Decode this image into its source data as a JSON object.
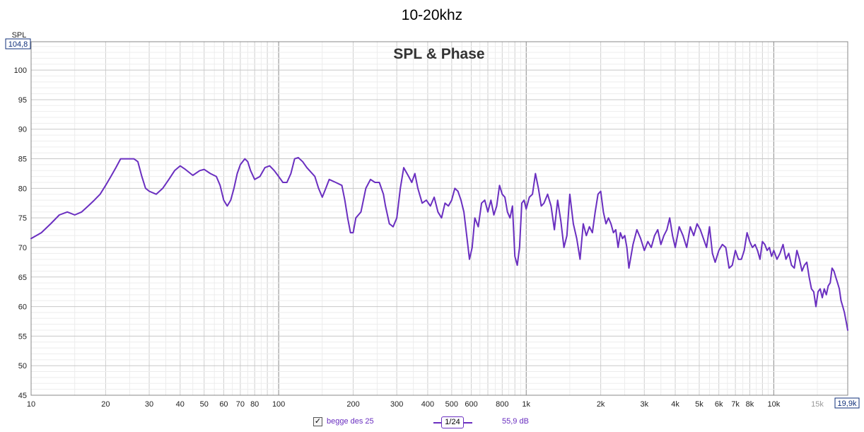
{
  "window": {
    "title": "10-20khz"
  },
  "chart_data": {
    "type": "line",
    "title": "SPL & Phase",
    "ylabel": "SPL",
    "xscale": "log",
    "xlim": [
      10,
      19900
    ],
    "ylim": [
      45,
      104.8
    ],
    "y_max_readout": "104,8",
    "x_max_readout": "19,9k",
    "y_ticks": [
      45,
      50,
      55,
      60,
      65,
      70,
      75,
      80,
      85,
      90,
      95,
      100
    ],
    "x_tick_labels": [
      {
        "v": 10,
        "t": "10"
      },
      {
        "v": 20,
        "t": "20"
      },
      {
        "v": 30,
        "t": "30"
      },
      {
        "v": 40,
        "t": "40"
      },
      {
        "v": 50,
        "t": "50"
      },
      {
        "v": 60,
        "t": "60"
      },
      {
        "v": 70,
        "t": "70"
      },
      {
        "v": 80,
        "t": "80"
      },
      {
        "v": 100,
        "t": "100"
      },
      {
        "v": 200,
        "t": "200"
      },
      {
        "v": 300,
        "t": "300"
      },
      {
        "v": 400,
        "t": "400"
      },
      {
        "v": 500,
        "t": "500"
      },
      {
        "v": 600,
        "t": "600"
      },
      {
        "v": 800,
        "t": "800"
      },
      {
        "v": 1000,
        "t": "1k"
      },
      {
        "v": 2000,
        "t": "2k"
      },
      {
        "v": 3000,
        "t": "3k"
      },
      {
        "v": 4000,
        "t": "4k"
      },
      {
        "v": 5000,
        "t": "5k"
      },
      {
        "v": 6000,
        "t": "6k"
      },
      {
        "v": 7000,
        "t": "7k"
      },
      {
        "v": 8000,
        "t": "8k"
      },
      {
        "v": 10000,
        "t": "10k"
      },
      {
        "v": 15000,
        "t": "15k",
        "muted": true
      }
    ],
    "grid": true,
    "series": [
      {
        "name": "begge des 25",
        "color": "#6a2fc0",
        "points": [
          [
            10,
            71.5
          ],
          [
            11,
            72.5
          ],
          [
            12,
            74
          ],
          [
            13,
            75.5
          ],
          [
            14,
            76
          ],
          [
            15,
            75.5
          ],
          [
            16,
            76
          ],
          [
            17,
            77
          ],
          [
            18,
            78
          ],
          [
            19,
            79
          ],
          [
            20,
            80.5
          ],
          [
            21,
            82
          ],
          [
            22,
            83.5
          ],
          [
            23,
            85
          ],
          [
            24,
            85
          ],
          [
            25,
            85
          ],
          [
            26,
            85
          ],
          [
            27,
            84.5
          ],
          [
            28,
            82
          ],
          [
            29,
            80
          ],
          [
            30,
            79.5
          ],
          [
            32,
            79
          ],
          [
            34,
            80
          ],
          [
            36,
            81.5
          ],
          [
            38,
            83
          ],
          [
            40,
            83.8
          ],
          [
            42,
            83.2
          ],
          [
            45,
            82.2
          ],
          [
            48,
            83
          ],
          [
            50,
            83.2
          ],
          [
            53,
            82.5
          ],
          [
            56,
            82
          ],
          [
            58,
            80.5
          ],
          [
            60,
            78
          ],
          [
            62,
            77
          ],
          [
            64,
            78
          ],
          [
            66,
            80
          ],
          [
            68,
            82.5
          ],
          [
            70,
            84
          ],
          [
            73,
            85
          ],
          [
            75,
            84.5
          ],
          [
            77,
            83
          ],
          [
            80,
            81.5
          ],
          [
            84,
            82
          ],
          [
            88,
            83.5
          ],
          [
            92,
            83.8
          ],
          [
            96,
            83
          ],
          [
            100,
            82
          ],
          [
            104,
            81
          ],
          [
            108,
            81
          ],
          [
            112,
            82.5
          ],
          [
            116,
            85
          ],
          [
            120,
            85.2
          ],
          [
            125,
            84.5
          ],
          [
            130,
            83.5
          ],
          [
            140,
            82
          ],
          [
            145,
            80
          ],
          [
            150,
            78.5
          ],
          [
            155,
            80
          ],
          [
            160,
            81.5
          ],
          [
            170,
            81
          ],
          [
            180,
            80.5
          ],
          [
            185,
            78
          ],
          [
            190,
            75
          ],
          [
            195,
            72.5
          ],
          [
            200,
            72.5
          ],
          [
            205,
            75
          ],
          [
            215,
            76
          ],
          [
            225,
            80
          ],
          [
            235,
            81.5
          ],
          [
            245,
            81
          ],
          [
            255,
            81
          ],
          [
            265,
            79
          ],
          [
            270,
            77
          ],
          [
            280,
            74
          ],
          [
            290,
            73.5
          ],
          [
            300,
            75
          ],
          [
            310,
            80
          ],
          [
            320,
            83.5
          ],
          [
            335,
            82
          ],
          [
            345,
            81
          ],
          [
            355,
            82.5
          ],
          [
            365,
            80
          ],
          [
            380,
            77.5
          ],
          [
            395,
            78
          ],
          [
            410,
            77
          ],
          [
            425,
            78.5
          ],
          [
            440,
            76
          ],
          [
            455,
            75
          ],
          [
            470,
            77.5
          ],
          [
            485,
            77
          ],
          [
            500,
            78
          ],
          [
            515,
            80
          ],
          [
            530,
            79.5
          ],
          [
            545,
            78
          ],
          [
            560,
            76
          ],
          [
            575,
            72
          ],
          [
            590,
            68
          ],
          [
            605,
            70
          ],
          [
            620,
            75
          ],
          [
            640,
            73.5
          ],
          [
            660,
            77.5
          ],
          [
            680,
            78
          ],
          [
            700,
            76
          ],
          [
            720,
            78
          ],
          [
            740,
            75.5
          ],
          [
            760,
            77
          ],
          [
            780,
            80.5
          ],
          [
            800,
            79
          ],
          [
            820,
            78.5
          ],
          [
            840,
            76
          ],
          [
            860,
            75
          ],
          [
            880,
            77
          ],
          [
            900,
            68.5
          ],
          [
            920,
            67
          ],
          [
            940,
            70
          ],
          [
            960,
            77.5
          ],
          [
            980,
            78
          ],
          [
            1000,
            76.5
          ],
          [
            1030,
            78.5
          ],
          [
            1060,
            79
          ],
          [
            1090,
            82.5
          ],
          [
            1120,
            80
          ],
          [
            1150,
            77
          ],
          [
            1180,
            77.5
          ],
          [
            1220,
            79
          ],
          [
            1260,
            77
          ],
          [
            1300,
            73
          ],
          [
            1340,
            78
          ],
          [
            1380,
            74.5
          ],
          [
            1420,
            70
          ],
          [
            1460,
            72
          ],
          [
            1500,
            79
          ],
          [
            1550,
            74
          ],
          [
            1600,
            71.5
          ],
          [
            1650,
            68
          ],
          [
            1700,
            74
          ],
          [
            1750,
            72
          ],
          [
            1800,
            73.5
          ],
          [
            1850,
            72.5
          ],
          [
            1900,
            76
          ],
          [
            1950,
            79
          ],
          [
            2000,
            79.5
          ],
          [
            2050,
            76
          ],
          [
            2100,
            74
          ],
          [
            2150,
            75
          ],
          [
            2200,
            74
          ],
          [
            2250,
            72.5
          ],
          [
            2300,
            73
          ],
          [
            2350,
            70
          ],
          [
            2400,
            72.5
          ],
          [
            2450,
            71.5
          ],
          [
            2500,
            72
          ],
          [
            2550,
            70
          ],
          [
            2600,
            66.5
          ],
          [
            2700,
            70.5
          ],
          [
            2800,
            73
          ],
          [
            2900,
            71.5
          ],
          [
            3000,
            69.5
          ],
          [
            3100,
            71
          ],
          [
            3200,
            70
          ],
          [
            3300,
            72
          ],
          [
            3400,
            73
          ],
          [
            3500,
            70.5
          ],
          [
            3600,
            72
          ],
          [
            3700,
            73
          ],
          [
            3800,
            75
          ],
          [
            3900,
            72
          ],
          [
            4000,
            70
          ],
          [
            4150,
            73.5
          ],
          [
            4300,
            72
          ],
          [
            4450,
            70
          ],
          [
            4600,
            73.5
          ],
          [
            4750,
            72
          ],
          [
            4900,
            74
          ],
          [
            5050,
            73
          ],
          [
            5200,
            71.5
          ],
          [
            5350,
            70
          ],
          [
            5500,
            73.5
          ],
          [
            5650,
            69
          ],
          [
            5800,
            67.5
          ],
          [
            6000,
            69.5
          ],
          [
            6200,
            70.5
          ],
          [
            6400,
            70
          ],
          [
            6600,
            66.5
          ],
          [
            6800,
            67
          ],
          [
            7000,
            69.5
          ],
          [
            7200,
            68
          ],
          [
            7400,
            68
          ],
          [
            7600,
            69.5
          ],
          [
            7800,
            72.5
          ],
          [
            8000,
            71
          ],
          [
            8200,
            70
          ],
          [
            8400,
            70.5
          ],
          [
            8600,
            69.5
          ],
          [
            8800,
            68
          ],
          [
            9000,
            71
          ],
          [
            9200,
            70.5
          ],
          [
            9400,
            69.5
          ],
          [
            9600,
            70
          ],
          [
            9800,
            68.5
          ],
          [
            10000,
            69.5
          ],
          [
            10300,
            68
          ],
          [
            10600,
            69
          ],
          [
            10900,
            70.5
          ],
          [
            11200,
            68
          ],
          [
            11500,
            69
          ],
          [
            11800,
            67
          ],
          [
            12100,
            66.5
          ],
          [
            12400,
            69.5
          ],
          [
            12700,
            68
          ],
          [
            13000,
            66
          ],
          [
            13300,
            67
          ],
          [
            13600,
            67.5
          ],
          [
            13900,
            65
          ],
          [
            14200,
            63
          ],
          [
            14500,
            62.5
          ],
          [
            14800,
            60
          ],
          [
            15100,
            62.5
          ],
          [
            15400,
            63
          ],
          [
            15700,
            61.5
          ],
          [
            16000,
            63
          ],
          [
            16300,
            62
          ],
          [
            16600,
            63.5
          ],
          [
            16900,
            64
          ],
          [
            17200,
            66.5
          ],
          [
            17500,
            66
          ],
          [
            17800,
            65
          ],
          [
            18100,
            64
          ],
          [
            18400,
            63
          ],
          [
            18700,
            61
          ],
          [
            19000,
            60
          ],
          [
            19300,
            59
          ],
          [
            19600,
            57.5
          ],
          [
            19900,
            56
          ]
        ]
      }
    ]
  },
  "legend": {
    "checked": true,
    "check_glyph": "✓",
    "series_label": "begge des 25",
    "smoothing": "1/24",
    "value": "55,9 dB"
  }
}
